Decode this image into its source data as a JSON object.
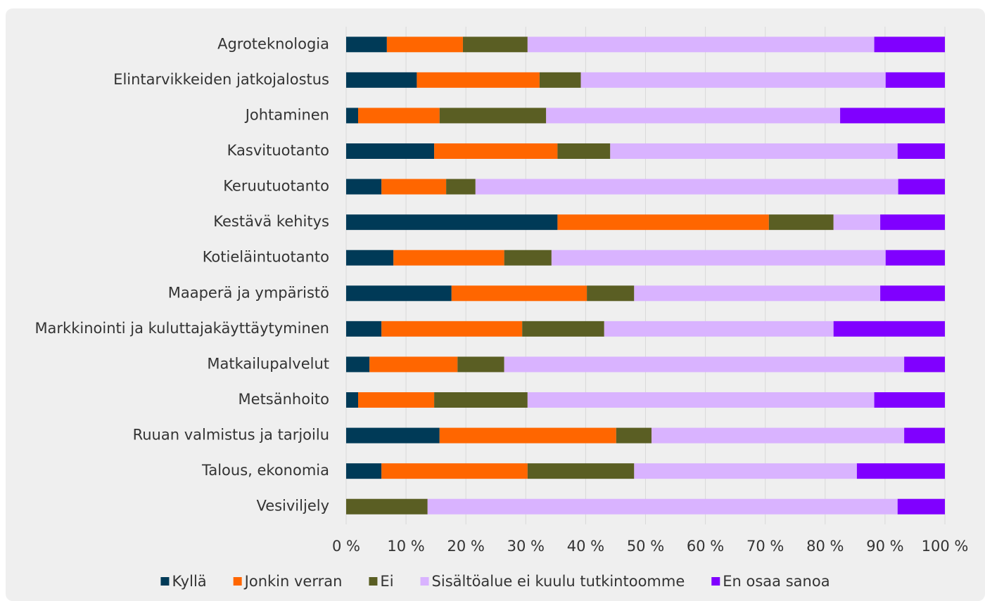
{
  "chart_data": {
    "type": "stacked_barh",
    "categories": [
      "Agroteknologia",
      "Elintarvikkeiden jatkojalostus",
      "Johtaminen",
      "Kasvituotanto",
      "Keruutuotanto",
      "Kestävä kehitys",
      "Kotieläintuotanto",
      "Maaperä ja ympäristö",
      "Markkinointi ja kuluttajakäyttäytyminen",
      "Matkailupalvelut",
      "Metsänhoito",
      "Ruuan valmistus ja tarjoilu",
      "Talous, ekonomia",
      "Vesiviljely"
    ],
    "series": [
      {
        "name": "Kyllä",
        "color": "#003a57",
        "values": [
          6.8,
          11.8,
          2.0,
          14.7,
          5.9,
          35.3,
          7.9,
          17.6,
          5.9,
          3.9,
          2.0,
          15.6,
          5.9,
          0
        ]
      },
      {
        "name": "Jonkin verran",
        "color": "#ff6600",
        "values": [
          12.7,
          20.5,
          13.6,
          20.6,
          10.8,
          35.3,
          18.5,
          22.6,
          23.5,
          14.7,
          12.7,
          29.5,
          24.4,
          0
        ]
      },
      {
        "name": "Ei",
        "color": "#5a5e23",
        "values": [
          10.8,
          6.9,
          17.8,
          8.8,
          4.9,
          10.8,
          7.9,
          7.9,
          13.7,
          7.8,
          15.6,
          5.9,
          17.8,
          13.6
        ]
      },
      {
        "name": "Sisältöalue ei kuulu tutkintoomme",
        "color": "#d9b3ff",
        "values": [
          57.9,
          50.9,
          49.1,
          48.0,
          70.6,
          7.8,
          55.8,
          41.1,
          38.3,
          66.8,
          57.9,
          42.2,
          37.2,
          78.5
        ]
      },
      {
        "name": "En osaa sanoa",
        "color": "#8000ff",
        "values": [
          11.8,
          9.9,
          17.5,
          7.9,
          7.8,
          10.8,
          9.9,
          10.8,
          18.6,
          6.8,
          11.8,
          6.8,
          14.7,
          7.9
        ]
      }
    ],
    "xlim": [
      0,
      100
    ],
    "xticks": [
      {
        "value": 0,
        "label": "0 %"
      },
      {
        "value": 10,
        "label": "10 %"
      },
      {
        "value": 20,
        "label": "20 %"
      },
      {
        "value": 30,
        "label": "30 %"
      },
      {
        "value": 40,
        "label": "40 %"
      },
      {
        "value": 50,
        "label": "50 %"
      },
      {
        "value": 60,
        "label": "60 %"
      },
      {
        "value": 70,
        "label": "70 %"
      },
      {
        "value": 80,
        "label": "80 %"
      },
      {
        "value": 90,
        "label": "90 %"
      },
      {
        "value": 100,
        "label": "100 %"
      }
    ],
    "grid": true,
    "legend": "bottom"
  }
}
